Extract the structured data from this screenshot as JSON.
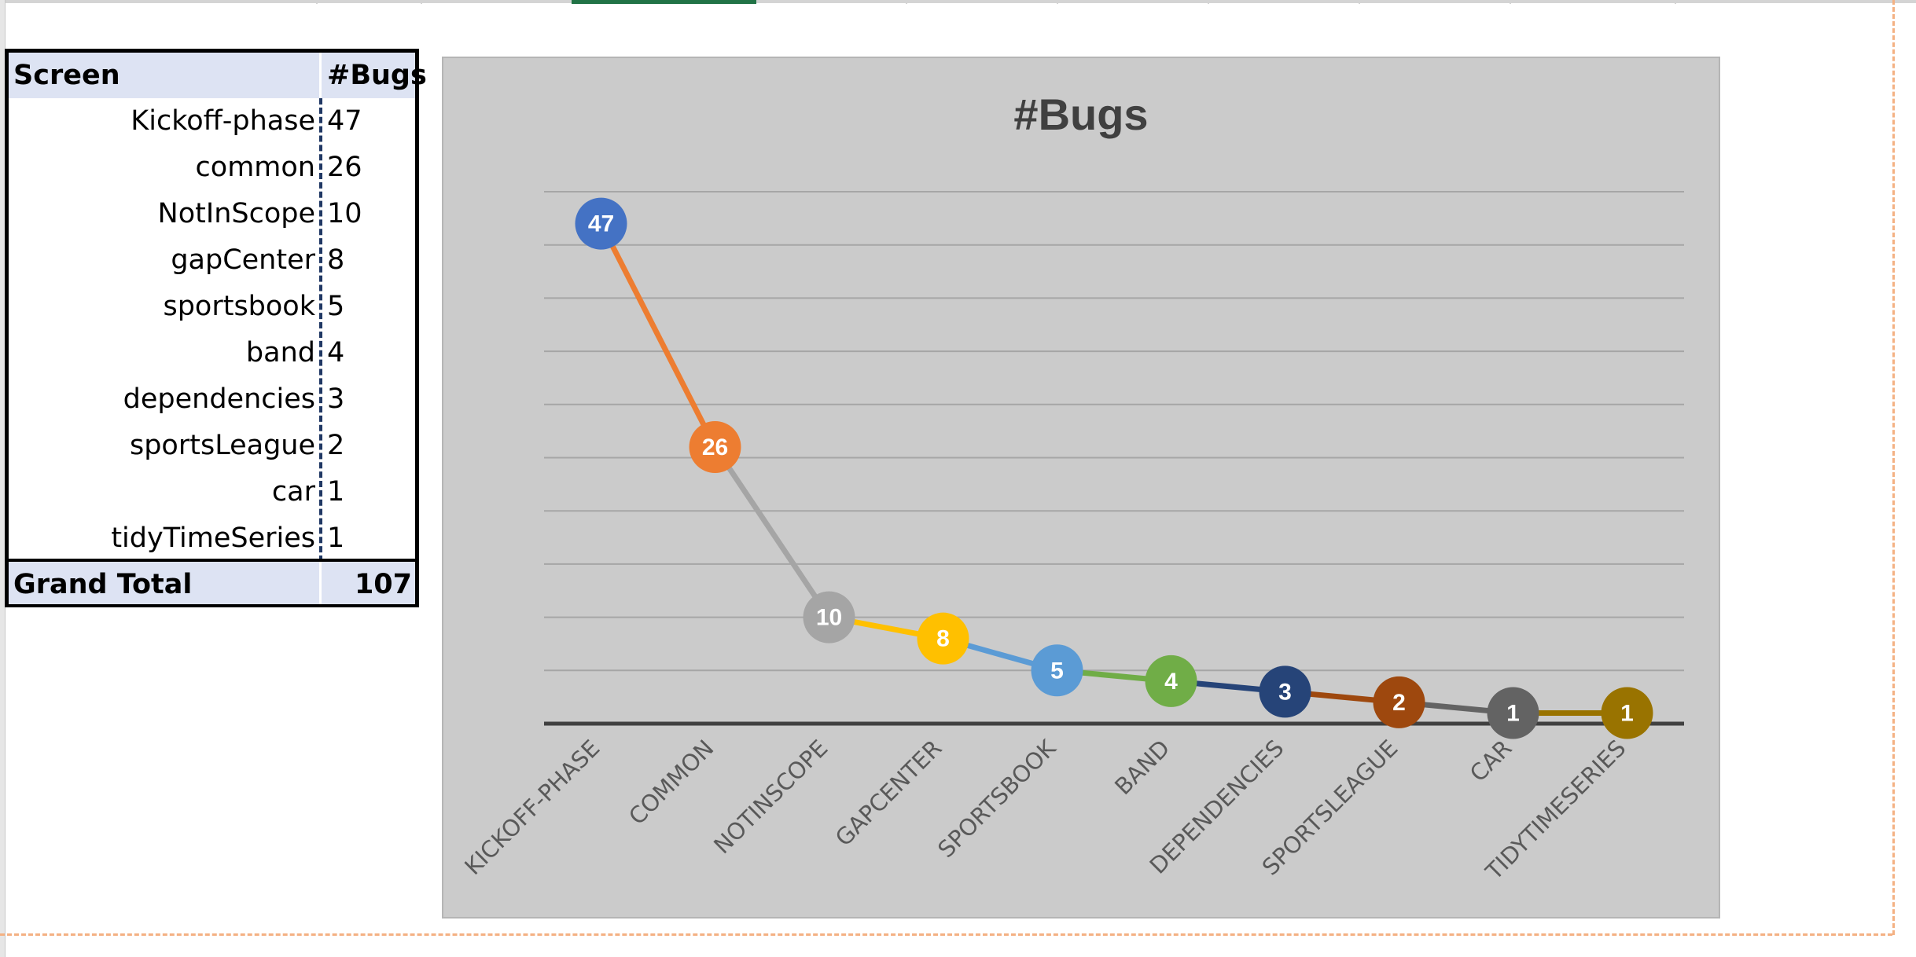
{
  "pivot": {
    "header": {
      "label": "Screen",
      "value": "#Bugs"
    },
    "rows": [
      {
        "label": "Kickoff-phase",
        "value": "47"
      },
      {
        "label": "common",
        "value": "26"
      },
      {
        "label": "NotInScope",
        "value": "10"
      },
      {
        "label": "gapCenter",
        "value": "8"
      },
      {
        "label": "sportsbook",
        "value": "5"
      },
      {
        "label": "band",
        "value": "4"
      },
      {
        "label": "dependencies",
        "value": "3"
      },
      {
        "label": "sportsLeague",
        "value": "2"
      },
      {
        "label": "car",
        "value": "1"
      },
      {
        "label": "tidyTimeSeries",
        "value": "1"
      }
    ],
    "total": {
      "label": "Grand Total",
      "value": "107"
    }
  },
  "chart_data": {
    "type": "line",
    "title": "#Bugs",
    "categories": [
      "KICKOFF-PHASE",
      "COMMON",
      "NOTINSCOPE",
      "GAPCENTER",
      "SPORTSBOOK",
      "BAND",
      "DEPENDENCIES",
      "SPORTSLEAGUE",
      "CAR",
      "TIDYTIMESERIES"
    ],
    "values": [
      47,
      26,
      10,
      8,
      5,
      4,
      3,
      2,
      1,
      1
    ],
    "point_colors": [
      "#4472c4",
      "#ed7d31",
      "#a5a5a5",
      "#ffc000",
      "#5b9bd5",
      "#70ad47",
      "#264478",
      "#9e480e",
      "#636363",
      "#997300"
    ],
    "segment_colors": [
      "#ed7d31",
      "#a5a5a5",
      "#ffc000",
      "#5b9bd5",
      "#70ad47",
      "#264478",
      "#9e480e",
      "#636363",
      "#997300"
    ],
    "ylim": [
      0,
      50
    ],
    "grid": true,
    "legend": "none",
    "xlabel": "",
    "ylabel": ""
  }
}
